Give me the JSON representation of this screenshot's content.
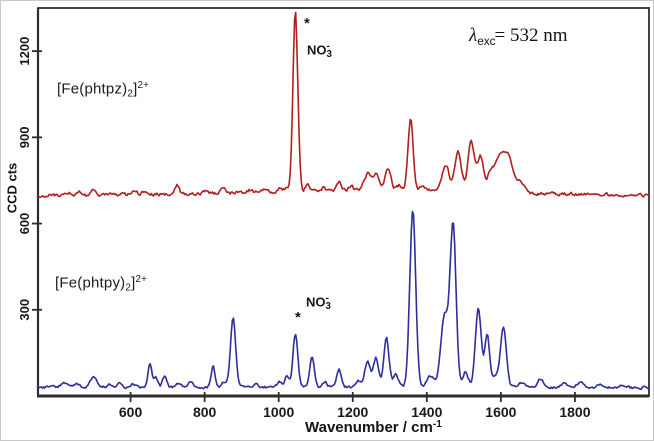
{
  "figure": {
    "bg": "#ffffff",
    "frame_color": "#2e2e2e",
    "text_color": "#1c1c1c"
  },
  "chart_data": {
    "type": "line",
    "title": "",
    "xlabel": "Wavenumber / cm-1",
    "ylabel": "CCD cts",
    "xlim": [
      350,
      2000
    ],
    "ylim": [
      0,
      1350
    ],
    "x_ticks": [
      600,
      800,
      1000,
      1200,
      1400,
      1600,
      1800
    ],
    "y_ticks": [
      300,
      600,
      900,
      1200
    ],
    "grid": false,
    "legend_position": "inline-labels",
    "series": [
      {
        "id": "fe-phtpz",
        "label": "[Fe(phtpz)2]2+",
        "color": "#b21e1e",
        "noise_amp": 10,
        "baseline_points": [
          [
            350,
            697
          ],
          [
            700,
            703
          ],
          [
            900,
            707
          ],
          [
            1150,
            715
          ],
          [
            1430,
            714
          ],
          [
            1660,
            704
          ],
          [
            2000,
            699
          ]
        ],
        "peaks": [
          [
            430,
            12,
            8
          ],
          [
            465,
            10,
            7
          ],
          [
            500,
            22,
            6
          ],
          [
            610,
            12,
            7
          ],
          [
            640,
            14,
            6
          ],
          [
            726,
            32,
            5
          ],
          [
            800,
            10,
            6
          ],
          [
            850,
            16,
            6
          ],
          [
            920,
            8,
            7
          ],
          [
            965,
            14,
            6
          ],
          [
            1003,
            18,
            6
          ],
          [
            1022,
            14,
            5
          ],
          [
            1045,
            625,
            6.5
          ],
          [
            1078,
            22,
            6
          ],
          [
            1120,
            10,
            7
          ],
          [
            1163,
            28,
            6
          ],
          [
            1195,
            16,
            6
          ],
          [
            1240,
            58,
            10
          ],
          [
            1263,
            52,
            8
          ],
          [
            1295,
            76,
            8
          ],
          [
            1325,
            18,
            7
          ],
          [
            1356,
            248,
            7
          ],
          [
            1390,
            16,
            8
          ],
          [
            1451,
            92,
            9
          ],
          [
            1484,
            138,
            9
          ],
          [
            1520,
            172,
            9
          ],
          [
            1545,
            122,
            8
          ],
          [
            1572,
            66,
            9
          ],
          [
            1598,
            128,
            13
          ],
          [
            1622,
            108,
            11
          ],
          [
            1652,
            42,
            12
          ]
        ]
      },
      {
        "id": "fe-phtpy",
        "label": "[Fe(phtpy)2]2+",
        "color": "#2d2d9e",
        "noise_amp": 8,
        "baseline_points": [
          [
            350,
            32
          ],
          [
            2000,
            29
          ]
        ],
        "peaks": [
          [
            420,
            12,
            8
          ],
          [
            455,
            10,
            7
          ],
          [
            500,
            30,
            9
          ],
          [
            545,
            10,
            7
          ],
          [
            568,
            14,
            6
          ],
          [
            610,
            10,
            6
          ],
          [
            652,
            86,
            5
          ],
          [
            668,
            30,
            5
          ],
          [
            692,
            40,
            5
          ],
          [
            728,
            12,
            6
          ],
          [
            762,
            20,
            6
          ],
          [
            823,
            72,
            5
          ],
          [
            852,
            18,
            6
          ],
          [
            877,
            240,
            7
          ],
          [
            940,
            12,
            6
          ],
          [
            1002,
            20,
            6
          ],
          [
            1022,
            40,
            6
          ],
          [
            1045,
            186,
            6.5
          ],
          [
            1090,
            104,
            6
          ],
          [
            1125,
            20,
            6
          ],
          [
            1163,
            62,
            6
          ],
          [
            1215,
            24,
            6
          ],
          [
            1240,
            90,
            8
          ],
          [
            1263,
            100,
            7
          ],
          [
            1291,
            172,
            7
          ],
          [
            1317,
            42,
            7
          ],
          [
            1362,
            618,
            8
          ],
          [
            1410,
            40,
            9
          ],
          [
            1448,
            250,
            10
          ],
          [
            1471,
            560,
            8
          ],
          [
            1505,
            55,
            7
          ],
          [
            1539,
            275,
            8
          ],
          [
            1563,
            185,
            6.5
          ],
          [
            1585,
            40,
            8
          ],
          [
            1607,
            212,
            8
          ],
          [
            1655,
            18,
            9
          ],
          [
            1707,
            30,
            7
          ],
          [
            1770,
            12,
            8
          ],
          [
            1816,
            20,
            9
          ],
          [
            1870,
            12,
            8
          ],
          [
            1930,
            10,
            8
          ]
        ]
      }
    ],
    "annotations": [
      {
        "text": "* NO3-",
        "marks_band_cm1": 1045,
        "series": "fe-phtpz"
      },
      {
        "text": "* NO3-",
        "marks_band_cm1": 1045,
        "series": "fe-phtpy"
      },
      {
        "text": "λexc= 532 nm",
        "position": "top-right"
      }
    ]
  },
  "labels": {
    "formula_top": {
      "pre": "[Fe(phtpz)",
      "sub": "2",
      "close": "]",
      "sup": "2+"
    },
    "formula_bottom": {
      "pre": "[Fe(phtpy)",
      "sub": "2",
      "close": "]",
      "sup": "2+"
    },
    "excitation": {
      "lambda": "λ",
      "sub": "exc",
      "rest": "= 532 nm"
    },
    "nitrate_top": {
      "star": "*",
      "base": "NO",
      "sub": "3",
      "sup": "-"
    },
    "nitrate_bottom": {
      "star": "*",
      "base": "NO",
      "sub": "3",
      "sup": "-"
    },
    "x_axis": {
      "base": "Wavenumber / cm",
      "sup": "-1"
    },
    "y_axis": "CCD cts"
  }
}
